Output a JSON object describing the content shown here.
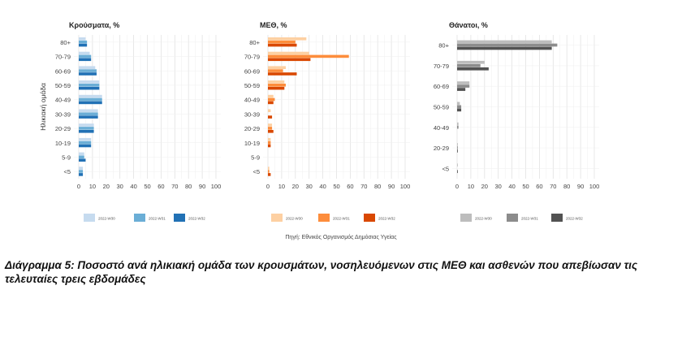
{
  "source": "Πηγή: Εθνικός Οργανισμός Δημόσιας Υγείας",
  "caption": "Διάγραμμα 5: Ποσοστό ανά ηλικιακή ομάδα των κρουσμάτων, νοσηλευόμενων στις ΜΕΘ και ασθενών που απεβίωσαν τις τελευταίες τρεις εβδομάδες",
  "chart_data": [
    {
      "type": "bar",
      "orientation": "horizontal",
      "title": "Κρούσματα, %",
      "ylabel": "Ηλικιακή ομάδα",
      "xlim": [
        0,
        100
      ],
      "xticks": [
        0,
        10,
        20,
        30,
        40,
        50,
        60,
        70,
        80,
        90,
        100
      ],
      "grid": true,
      "legend": "bottom",
      "categories": [
        "80+",
        "70-79",
        "60-69",
        "50-59",
        "40-49",
        "30-39",
        "20-29",
        "10-19",
        "5-9",
        "<5"
      ],
      "series": [
        {
          "name": "2022-W30",
          "color": "#c6dbef",
          "values": [
            5,
            8,
            12,
            15,
            17,
            14,
            11,
            9,
            4,
            3
          ]
        },
        {
          "name": "2022-W31",
          "color": "#6baed6",
          "values": [
            6,
            9,
            13,
            15,
            17,
            14,
            11,
            9,
            4,
            3
          ]
        },
        {
          "name": "2022-W32",
          "color": "#2171b5",
          "values": [
            6,
            9,
            13,
            15,
            17,
            14,
            11,
            9,
            5,
            3
          ]
        }
      ]
    },
    {
      "type": "bar",
      "orientation": "horizontal",
      "title": "ΜΕΘ, %",
      "xlim": [
        0,
        100
      ],
      "xticks": [
        0,
        10,
        20,
        30,
        40,
        50,
        60,
        70,
        80,
        90,
        100
      ],
      "grid": true,
      "legend": "bottom",
      "categories": [
        "80+",
        "70-79",
        "60-69",
        "50-59",
        "40-49",
        "30-39",
        "20-29",
        "10-19",
        "5-9",
        "<5"
      ],
      "series": [
        {
          "name": "2022-W30",
          "color": "#fdd0a2",
          "values": [
            28,
            30,
            13,
            12,
            4,
            2,
            3,
            2,
            0,
            1
          ]
        },
        {
          "name": "2022-W31",
          "color": "#fd8d3c",
          "values": [
            20,
            59,
            11,
            13,
            5,
            0,
            3,
            2,
            0,
            1
          ]
        },
        {
          "name": "2022-W32",
          "color": "#d94801",
          "values": [
            21,
            31,
            21,
            12,
            4,
            3,
            4,
            2,
            0,
            2
          ]
        }
      ]
    },
    {
      "type": "bar",
      "orientation": "horizontal",
      "title": "Θάνατοι, %",
      "xlim": [
        0,
        100
      ],
      "xticks": [
        0,
        10,
        20,
        30,
        40,
        50,
        60,
        70,
        80,
        90,
        100
      ],
      "grid": true,
      "legend": "bottom",
      "categories": [
        "80+",
        "70-79",
        "60-69",
        "50-59",
        "40-49",
        "20-29",
        "<5"
      ],
      "series": [
        {
          "name": "2022-W30",
          "color": "#bdbdbd",
          "values": [
            69,
            20,
            9,
            2,
            1,
            0.5,
            0.5
          ]
        },
        {
          "name": "2022-W31",
          "color": "#8c8c8c",
          "values": [
            73,
            17,
            9,
            3,
            1,
            0.5,
            0
          ]
        },
        {
          "name": "2022-W32",
          "color": "#525252",
          "values": [
            69,
            23,
            6,
            3,
            0,
            0.5,
            0.5
          ]
        }
      ]
    }
  ]
}
